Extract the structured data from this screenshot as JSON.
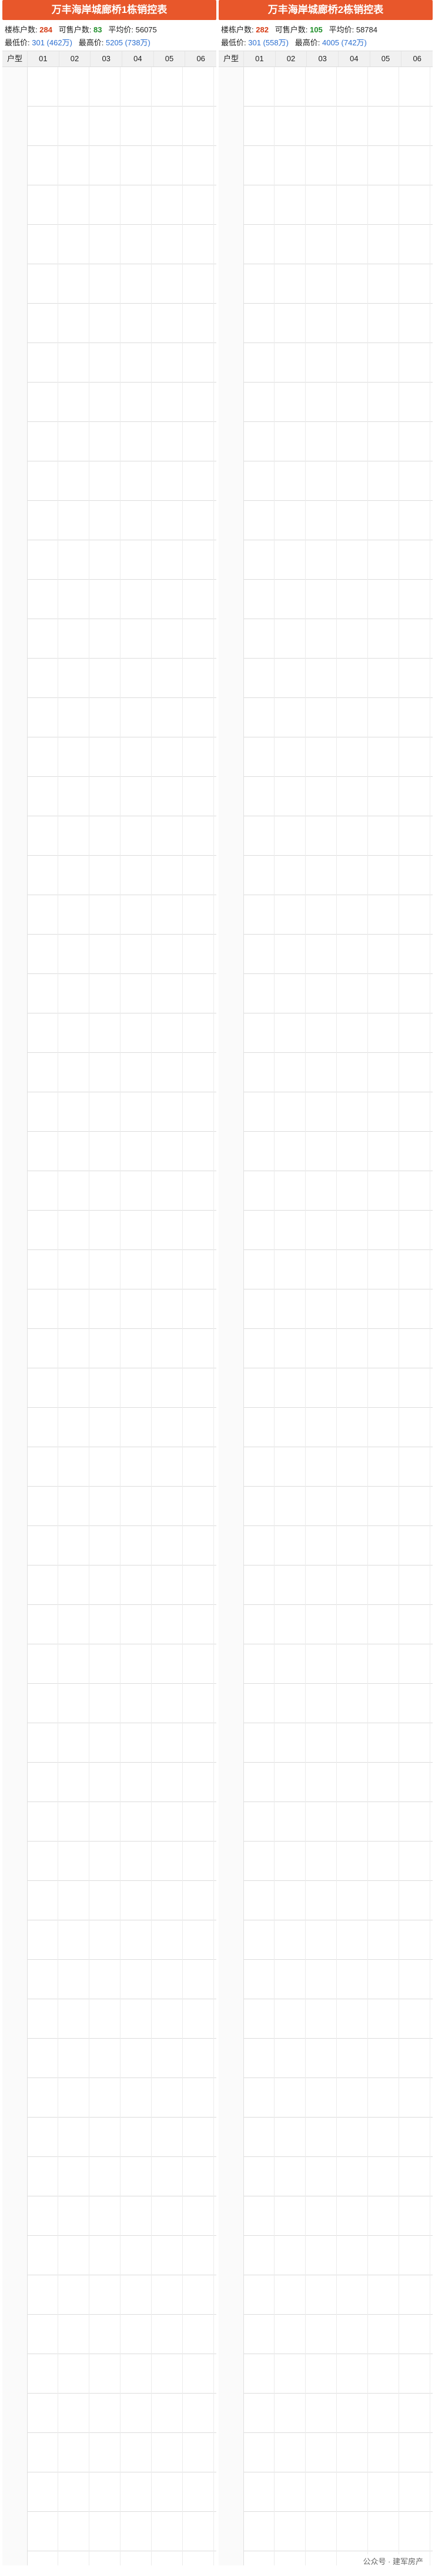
{
  "left": {
    "title": "万丰海岸城廊桥1栋销控表",
    "stats": {
      "total_label": "楼栋户数:",
      "total_value": "284",
      "available_label": "可售户数:",
      "available_value": "83",
      "avg_label": "平均价:",
      "avg_value": "56075",
      "min_label": "最低价:",
      "min_value": "301 (462万)",
      "max_label": "最高价:",
      "max_value": "5205 (738万)"
    },
    "header": [
      "户型",
      "01",
      "02",
      "03",
      "04",
      "05",
      "06"
    ]
  },
  "right": {
    "title": "万丰海岸城廊桥2栋销控表",
    "stats": {
      "total_label": "楼栋户数:",
      "total_value": "282",
      "available_label": "可售户数:",
      "available_value": "105",
      "avg_label": "平均价:",
      "avg_value": "58784",
      "min_label": "最低价:",
      "min_value": "301 (558万)",
      "max_label": "最高价:",
      "max_value": "4005 (742万)"
    },
    "header": [
      "户型",
      "01",
      "02",
      "03",
      "04",
      "05",
      "06"
    ]
  },
  "watermark": "公众号 · 建军房产"
}
